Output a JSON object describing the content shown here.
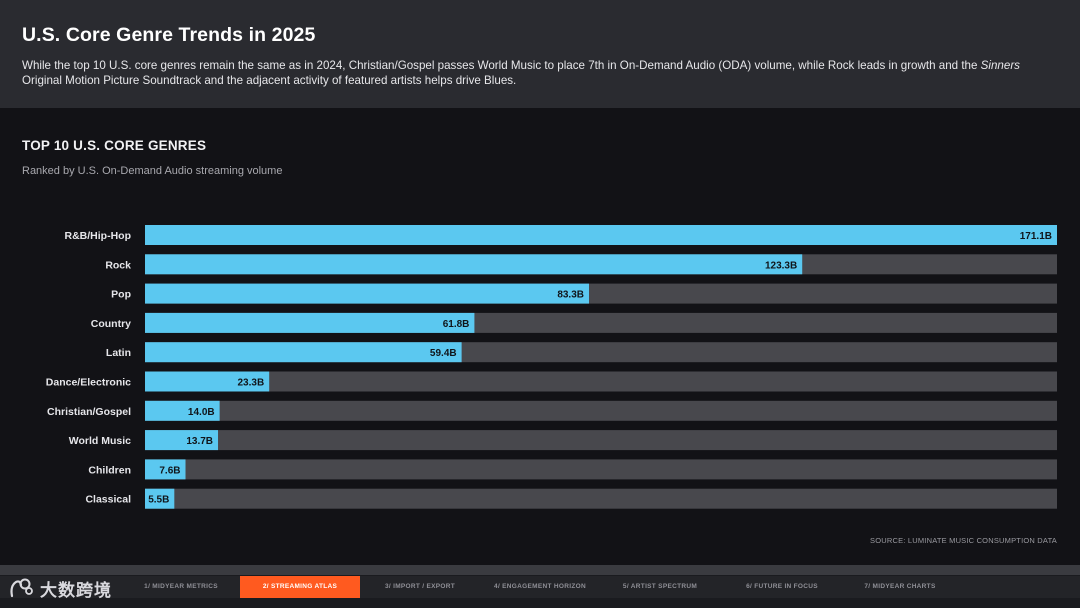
{
  "header": {
    "title": "U.S. Core Genre Trends in 2025",
    "desc_part1": "While the top 10 U.S. core genres remain the same as in 2024, Christian/Gospel passes World Music to place 7th in On-Demand Audio (ODA) volume, while Rock leads in growth and the ",
    "desc_italic": "Sinners",
    "desc_part2": " Original Motion Picture Soundtrack and the adjacent activity of featured artists helps drive Blues."
  },
  "section": {
    "title": "TOP 10 U.S. CORE GENRES",
    "subtitle": "Ranked by U.S. On-Demand Audio streaming volume"
  },
  "chart_data": {
    "type": "bar",
    "orientation": "horizontal",
    "title": "TOP 10 U.S. CORE GENRES",
    "subtitle": "Ranked by U.S. On-Demand Audio streaming volume",
    "categories": [
      "R&B/Hip-Hop",
      "Rock",
      "Pop",
      "Country",
      "Latin",
      "Dance/Electronic",
      "Christian/Gospel",
      "World Music",
      "Children",
      "Classical"
    ],
    "values": [
      171.1,
      123.3,
      83.3,
      61.8,
      59.4,
      23.3,
      14.0,
      13.7,
      7.6,
      5.5
    ],
    "value_labels": [
      "171.1B",
      "123.3B",
      "83.3B",
      "61.8B",
      "59.4B",
      "23.3B",
      "14.0B",
      "13.7B",
      "7.6B",
      "5.5B"
    ],
    "xlim": [
      0,
      171.1
    ],
    "grid": false,
    "legend": "none",
    "colors": {
      "bar": "#5bc8f0",
      "track": "#48484d",
      "label": "#e6e6ea",
      "value_text": "#10151a"
    }
  },
  "source": "SOURCE: LUMINATE MUSIC CONSUMPTION DATA",
  "nav": {
    "items": [
      {
        "label": "1/ MIDYEAR METRICS",
        "active": false
      },
      {
        "label": "2/ STREAMING ATLAS",
        "active": true
      },
      {
        "label": "3/ IMPORT / EXPORT",
        "active": false
      },
      {
        "label": "4/ ENGAGEMENT HORIZON",
        "active": false
      },
      {
        "label": "5/ ARTIST SPECTRUM",
        "active": false
      },
      {
        "label": "6/ FUTURE IN FOCUS",
        "active": false
      },
      {
        "label": "7/ MIDYEAR CHARTS",
        "active": false
      }
    ],
    "active_color": "#ff5a1f"
  },
  "watermark": {
    "text": "大数跨境",
    "icon": "watermark-logo-icon"
  }
}
